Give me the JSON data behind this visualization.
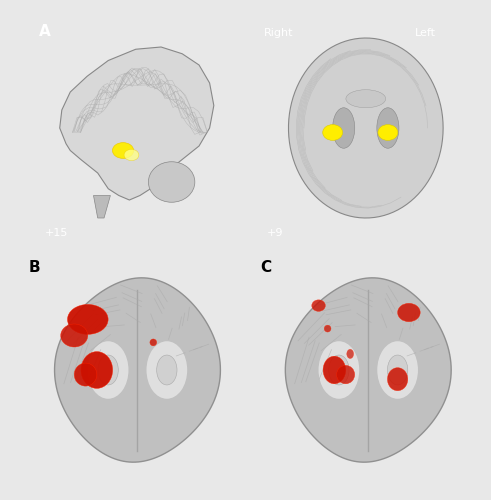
{
  "figure_background": "#e8e8e8",
  "panel_A_bg": "#000000",
  "panel_BC_bg": "#c8c8c8",
  "label_A": "A",
  "label_B": "B",
  "label_C": "C",
  "label_A_color": "#000000",
  "label_BC_color": "#000000",
  "text_plus15": "+15",
  "text_plus9": "+9",
  "text_right": "Right",
  "text_left": "Left",
  "text_color_A": "#ffffff",
  "activation_yellow": "#ffff00",
  "activation_red": "#cc1100",
  "activation_red_bright": "#ff2200",
  "fig_width": 4.91,
  "fig_height": 5.0,
  "dpi": 100
}
